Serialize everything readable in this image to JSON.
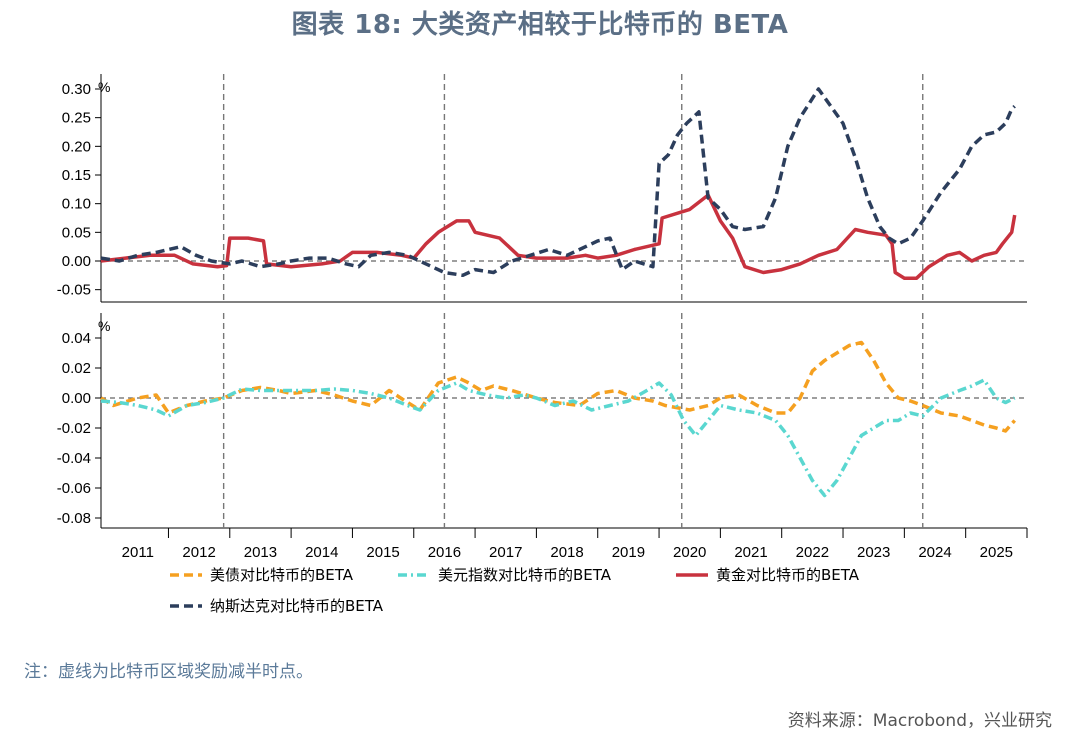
{
  "title": "图表 18: 大类资产相较于比特币的 BETA",
  "note": "注：虚线为比特币区域奖励减半时点。",
  "source": "资料来源：Macrobond，兴业研究",
  "chart_data": [
    {
      "type": "line",
      "unit": "%",
      "ylim": [
        -0.07,
        0.3
      ],
      "yticks": [
        "0.30",
        "0.25",
        "0.20",
        "0.15",
        "0.10",
        "0.05",
        "0.00",
        "-0.05"
      ],
      "yticks_values": [
        0.3,
        0.25,
        0.2,
        0.15,
        0.1,
        0.05,
        0.0,
        -0.05
      ],
      "series": [
        {
          "name": "黄金对比特币的BETA",
          "color": "#c8323e",
          "style": "solid",
          "points": [
            [
              2010.9,
              0.0
            ],
            [
              2011.3,
              0.005
            ],
            [
              2011.7,
              0.01
            ],
            [
              2012.1,
              0.01
            ],
            [
              2012.4,
              -0.005
            ],
            [
              2012.8,
              -0.01
            ],
            [
              2012.95,
              -0.008
            ],
            [
              2013.0,
              0.04
            ],
            [
              2013.3,
              0.04
            ],
            [
              2013.55,
              0.035
            ],
            [
              2013.6,
              -0.005
            ],
            [
              2014.0,
              -0.01
            ],
            [
              2014.5,
              -0.005
            ],
            [
              2014.8,
              0.0
            ],
            [
              2015.0,
              0.015
            ],
            [
              2015.4,
              0.015
            ],
            [
              2015.8,
              0.01
            ],
            [
              2016.0,
              0.005
            ],
            [
              2016.2,
              0.03
            ],
            [
              2016.4,
              0.05
            ],
            [
              2016.7,
              0.07
            ],
            [
              2016.9,
              0.07
            ],
            [
              2017.0,
              0.05
            ],
            [
              2017.4,
              0.04
            ],
            [
              2017.7,
              0.01
            ],
            [
              2018.0,
              0.005
            ],
            [
              2018.5,
              0.005
            ],
            [
              2018.8,
              0.01
            ],
            [
              2019.0,
              0.005
            ],
            [
              2019.3,
              0.01
            ],
            [
              2019.6,
              0.02
            ],
            [
              2020.0,
              0.03
            ],
            [
              2020.05,
              0.075
            ],
            [
              2020.5,
              0.09
            ],
            [
              2020.8,
              0.115
            ],
            [
              2021.0,
              0.07
            ],
            [
              2021.2,
              0.04
            ],
            [
              2021.4,
              -0.01
            ],
            [
              2021.7,
              -0.02
            ],
            [
              2022.0,
              -0.015
            ],
            [
              2022.3,
              -0.005
            ],
            [
              2022.6,
              0.01
            ],
            [
              2022.9,
              0.02
            ],
            [
              2023.2,
              0.055
            ],
            [
              2023.4,
              0.05
            ],
            [
              2023.7,
              0.045
            ],
            [
              2023.8,
              0.03
            ],
            [
              2023.85,
              -0.02
            ],
            [
              2024.0,
              -0.03
            ],
            [
              2024.2,
              -0.03
            ],
            [
              2024.4,
              -0.01
            ],
            [
              2024.7,
              0.01
            ],
            [
              2024.9,
              0.015
            ],
            [
              2025.1,
              0.0
            ],
            [
              2025.3,
              0.01
            ],
            [
              2025.5,
              0.015
            ],
            [
              2025.6,
              0.03
            ],
            [
              2025.75,
              0.05
            ],
            [
              2025.8,
              0.08
            ]
          ]
        },
        {
          "name": "纳斯达克对比特币的BETA",
          "color": "#2c3e5c",
          "style": "dashed",
          "points": [
            [
              2010.9,
              0.005
            ],
            [
              2011.2,
              0.0
            ],
            [
              2011.5,
              0.01
            ],
            [
              2011.8,
              0.015
            ],
            [
              2012.0,
              0.02
            ],
            [
              2012.2,
              0.025
            ],
            [
              2012.45,
              0.01
            ],
            [
              2012.7,
              0.0
            ],
            [
              2013.0,
              -0.005
            ],
            [
              2013.2,
              0.0
            ],
            [
              2013.5,
              -0.01
            ],
            [
              2013.8,
              -0.005
            ],
            [
              2014.0,
              0.0
            ],
            [
              2014.3,
              0.005
            ],
            [
              2014.6,
              0.005
            ],
            [
              2014.9,
              -0.005
            ],
            [
              2015.1,
              -0.01
            ],
            [
              2015.3,
              0.01
            ],
            [
              2015.6,
              0.015
            ],
            [
              2015.9,
              0.01
            ],
            [
              2016.2,
              -0.005
            ],
            [
              2016.5,
              -0.02
            ],
            [
              2016.8,
              -0.025
            ],
            [
              2017.0,
              -0.015
            ],
            [
              2017.3,
              -0.02
            ],
            [
              2017.6,
              0.0
            ],
            [
              2017.9,
              0.01
            ],
            [
              2018.2,
              0.02
            ],
            [
              2018.5,
              0.01
            ],
            [
              2018.8,
              0.025
            ],
            [
              2019.0,
              0.035
            ],
            [
              2019.2,
              0.04
            ],
            [
              2019.4,
              -0.015
            ],
            [
              2019.6,
              0.0
            ],
            [
              2019.9,
              -0.01
            ],
            [
              2020.0,
              0.17
            ],
            [
              2020.15,
              0.185
            ],
            [
              2020.3,
              0.22
            ],
            [
              2020.45,
              0.24
            ],
            [
              2020.65,
              0.26
            ],
            [
              2020.8,
              0.11
            ],
            [
              2021.0,
              0.09
            ],
            [
              2021.2,
              0.06
            ],
            [
              2021.4,
              0.055
            ],
            [
              2021.7,
              0.06
            ],
            [
              2021.9,
              0.11
            ],
            [
              2022.1,
              0.2
            ],
            [
              2022.3,
              0.25
            ],
            [
              2022.6,
              0.3
            ],
            [
              2022.8,
              0.27
            ],
            [
              2023.0,
              0.24
            ],
            [
              2023.2,
              0.18
            ],
            [
              2023.4,
              0.11
            ],
            [
              2023.6,
              0.06
            ],
            [
              2023.75,
              0.04
            ],
            [
              2023.9,
              0.03
            ],
            [
              2024.1,
              0.04
            ],
            [
              2024.3,
              0.07
            ],
            [
              2024.6,
              0.12
            ],
            [
              2024.9,
              0.16
            ],
            [
              2025.1,
              0.2
            ],
            [
              2025.3,
              0.22
            ],
            [
              2025.5,
              0.225
            ],
            [
              2025.65,
              0.24
            ],
            [
              2025.75,
              0.265
            ],
            [
              2025.8,
              0.27
            ]
          ]
        }
      ]
    },
    {
      "type": "line",
      "unit": "%",
      "ylim": [
        -0.085,
        0.045
      ],
      "yticks": [
        "0.04",
        "0.02",
        "0.00",
        "-0.02",
        "-0.04",
        "-0.06",
        "-0.08"
      ],
      "yticks_values": [
        0.04,
        0.02,
        0.0,
        -0.02,
        -0.04,
        -0.06,
        -0.08
      ],
      "series": [
        {
          "name": "美债对比特币的BETA",
          "color": "#f5a020",
          "style": "dashed",
          "points": [
            [
              2010.9,
              0.0
            ],
            [
              2011.1,
              -0.005
            ],
            [
              2011.5,
              0.0
            ],
            [
              2011.8,
              0.002
            ],
            [
              2012.0,
              -0.01
            ],
            [
              2012.3,
              -0.005
            ],
            [
              2012.6,
              -0.002
            ],
            [
              2012.9,
              0.0
            ],
            [
              2013.2,
              0.005
            ],
            [
              2013.5,
              0.007
            ],
            [
              2013.8,
              0.005
            ],
            [
              2014.0,
              0.003
            ],
            [
              2014.4,
              0.005
            ],
            [
              2014.7,
              0.002
            ],
            [
              2015.0,
              -0.002
            ],
            [
              2015.3,
              -0.005
            ],
            [
              2015.6,
              0.005
            ],
            [
              2015.9,
              -0.003
            ],
            [
              2016.1,
              -0.008
            ],
            [
              2016.4,
              0.01
            ],
            [
              2016.7,
              0.014
            ],
            [
              2016.9,
              0.01
            ],
            [
              2017.1,
              0.005
            ],
            [
              2017.3,
              0.008
            ],
            [
              2017.6,
              0.005
            ],
            [
              2018.0,
              0.0
            ],
            [
              2018.3,
              -0.003
            ],
            [
              2018.7,
              -0.005
            ],
            [
              2019.0,
              0.003
            ],
            [
              2019.3,
              0.005
            ],
            [
              2019.6,
              0.0
            ],
            [
              2019.9,
              -0.002
            ],
            [
              2020.1,
              -0.005
            ],
            [
              2020.5,
              -0.008
            ],
            [
              2020.8,
              -0.005
            ],
            [
              2021.0,
              0.0
            ],
            [
              2021.3,
              0.002
            ],
            [
              2021.6,
              -0.005
            ],
            [
              2021.9,
              -0.01
            ],
            [
              2022.1,
              -0.01
            ],
            [
              2022.3,
              0.0
            ],
            [
              2022.5,
              0.018
            ],
            [
              2022.7,
              0.025
            ],
            [
              2022.9,
              0.03
            ],
            [
              2023.1,
              0.035
            ],
            [
              2023.3,
              0.037
            ],
            [
              2023.5,
              0.025
            ],
            [
              2023.7,
              0.01
            ],
            [
              2023.9,
              0.0
            ],
            [
              2024.1,
              -0.002
            ],
            [
              2024.3,
              -0.005
            ],
            [
              2024.6,
              -0.01
            ],
            [
              2024.9,
              -0.012
            ],
            [
              2025.1,
              -0.015
            ],
            [
              2025.3,
              -0.018
            ],
            [
              2025.5,
              -0.02
            ],
            [
              2025.65,
              -0.022
            ],
            [
              2025.8,
              -0.015
            ]
          ]
        },
        {
          "name": "美元指数对比特币的BETA",
          "color": "#5ad7d0",
          "style": "dashdot",
          "points": [
            [
              2010.9,
              -0.002
            ],
            [
              2011.2,
              -0.003
            ],
            [
              2011.5,
              -0.005
            ],
            [
              2011.8,
              -0.008
            ],
            [
              2012.0,
              -0.012
            ],
            [
              2012.3,
              -0.005
            ],
            [
              2012.6,
              -0.003
            ],
            [
              2012.9,
              0.0
            ],
            [
              2013.2,
              0.006
            ],
            [
              2013.5,
              0.005
            ],
            [
              2013.8,
              0.005
            ],
            [
              2014.1,
              0.005
            ],
            [
              2014.4,
              0.005
            ],
            [
              2014.7,
              0.006
            ],
            [
              2015.0,
              0.005
            ],
            [
              2015.3,
              0.003
            ],
            [
              2015.6,
              0.0
            ],
            [
              2015.9,
              -0.005
            ],
            [
              2016.1,
              -0.008
            ],
            [
              2016.4,
              0.005
            ],
            [
              2016.7,
              0.01
            ],
            [
              2016.9,
              0.005
            ],
            [
              2017.2,
              0.002
            ],
            [
              2017.5,
              0.0
            ],
            [
              2017.8,
              0.002
            ],
            [
              2018.0,
              0.0
            ],
            [
              2018.3,
              -0.005
            ],
            [
              2018.6,
              -0.002
            ],
            [
              2018.9,
              -0.008
            ],
            [
              2019.2,
              -0.005
            ],
            [
              2019.5,
              -0.002
            ],
            [
              2019.8,
              0.005
            ],
            [
              2020.0,
              0.01
            ],
            [
              2020.2,
              0.002
            ],
            [
              2020.4,
              -0.015
            ],
            [
              2020.6,
              -0.025
            ],
            [
              2020.8,
              -0.015
            ],
            [
              2021.0,
              -0.005
            ],
            [
              2021.3,
              -0.008
            ],
            [
              2021.6,
              -0.01
            ],
            [
              2021.9,
              -0.015
            ],
            [
              2022.1,
              -0.025
            ],
            [
              2022.3,
              -0.04
            ],
            [
              2022.5,
              -0.055
            ],
            [
              2022.7,
              -0.065
            ],
            [
              2022.9,
              -0.055
            ],
            [
              2023.1,
              -0.04
            ],
            [
              2023.3,
              -0.025
            ],
            [
              2023.5,
              -0.02
            ],
            [
              2023.7,
              -0.015
            ],
            [
              2023.9,
              -0.015
            ],
            [
              2024.1,
              -0.01
            ],
            [
              2024.3,
              -0.012
            ],
            [
              2024.6,
              0.0
            ],
            [
              2024.9,
              0.005
            ],
            [
              2025.1,
              0.008
            ],
            [
              2025.3,
              0.012
            ],
            [
              2025.5,
              0.0
            ],
            [
              2025.65,
              -0.003
            ],
            [
              2025.8,
              0.0
            ]
          ]
        }
      ]
    }
  ],
  "x_axis": {
    "year_labels": [
      "2011",
      "2012",
      "2013",
      "2014",
      "2015",
      "2016",
      "2017",
      "2018",
      "2019",
      "2020",
      "2021",
      "2022",
      "2023",
      "2024",
      "2025"
    ],
    "xlim": [
      2010.9,
      2026.0
    ],
    "halving_lines": [
      2012.9,
      2016.5,
      2020.37,
      2024.3
    ]
  },
  "legend": {
    "items": [
      {
        "label": "美债对比特币的BETA",
        "color": "#f5a020",
        "style": "dashed"
      },
      {
        "label": "美元指数对比特币的BETA",
        "color": "#5ad7d0",
        "style": "dashdot"
      },
      {
        "label": "黄金对比特币的BETA",
        "color": "#c8323e",
        "style": "solid"
      },
      {
        "label": "纳斯达克对比特币的BETA",
        "color": "#2c3e5c",
        "style": "dashed"
      }
    ]
  }
}
